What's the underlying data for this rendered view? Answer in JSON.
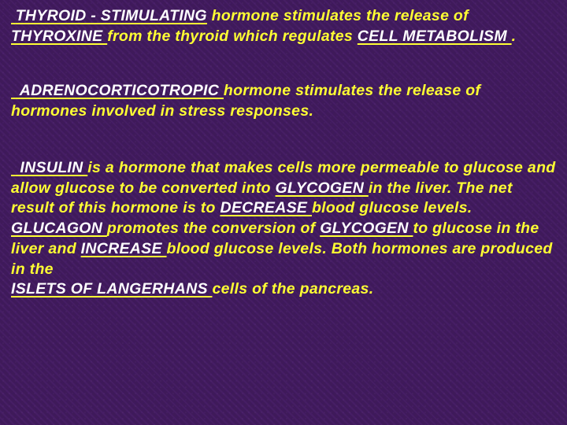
{
  "colors": {
    "background_base": "#3f1a5a",
    "text_yellow": "#ffff33",
    "fill_white": "#ffffff",
    "underline": "#ffff33"
  },
  "typography": {
    "font_family": "Verdana, Geneva, sans-serif",
    "font_size_pt": 15,
    "font_weight": "bold",
    "font_style": "italic",
    "line_height": 1.32
  },
  "p1": {
    "blank1": "THYROID -  STIMULATING",
    "t1": "  hormone stimulates the release of ",
    "blank2": "  THYROXINE  ",
    "t2": " from the thyroid which regulates ",
    "blank3": " CELL   METABOLISM ",
    "t3": " ."
  },
  "p2": {
    "blank1": " ADRENOCORTICOTROPIC ",
    "t1": "  hormone stimulates the release of hormones involved in stress responses."
  },
  "p3": {
    "blank1": "  INSULIN ",
    "t1": "  is a hormone that makes cells more permeable to glucose and allow glucose to be converted into ",
    "blank2": "  GLYCOGEN ",
    "t2": "  in the liver.  The net result of this hormone is to ",
    "blank3": "   DECREASE  ",
    "t3": "  blood glucose levels.  ",
    "blank4": "  GLUCAGON  ",
    "t4": " promotes the conversion of ",
    "blank5": "   GLYCOGEN  ",
    "t5": "  to glucose in the liver and ",
    "blank6": "  INCREASE ",
    "t6": "  blood glucose levels.  Both hormones are produced in the ",
    "blank7": "   ISLETS OF LANGERHANS   ",
    "t7": "  cells of the pancreas."
  }
}
